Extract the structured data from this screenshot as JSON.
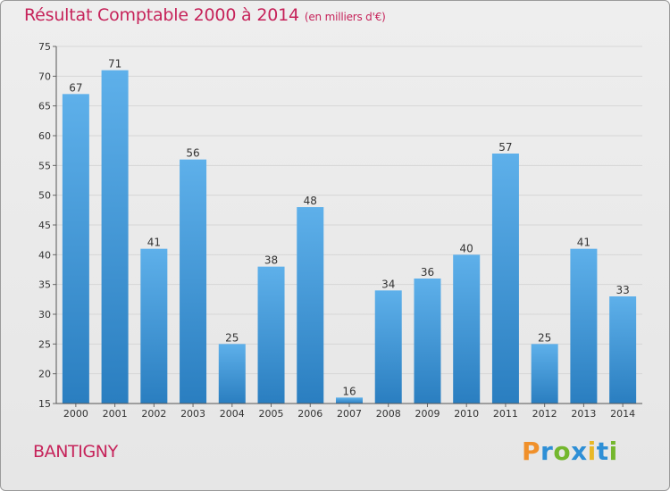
{
  "header": {
    "title": "Résultat Comptable 2000 à 2014",
    "subtitle": "(en milliers d'€)"
  },
  "footer": {
    "place": "BANTIGNY",
    "logo": "Proxiti"
  },
  "colors": {
    "title": "#c6235a",
    "bar_light": "#5eb0ea",
    "bar_dark": "#2a7ec0",
    "grid": "#d6d6d6",
    "axis_text": "#333333"
  },
  "chart_data": {
    "type": "bar",
    "title": "Résultat Comptable 2000 à 2014",
    "subtitle": "(en milliers d'€)",
    "xlabel": "",
    "ylabel": "",
    "categories": [
      "2000",
      "2001",
      "2002",
      "2003",
      "2004",
      "2005",
      "2006",
      "2007",
      "2008",
      "2009",
      "2010",
      "2011",
      "2012",
      "2013",
      "2014"
    ],
    "values": [
      67,
      71,
      41,
      56,
      25,
      38,
      48,
      16,
      34,
      36,
      40,
      57,
      25,
      41,
      33
    ],
    "ylim": [
      15,
      75
    ],
    "yticks": [
      15,
      20,
      25,
      30,
      35,
      40,
      45,
      50,
      55,
      60,
      65,
      70,
      75
    ],
    "grid": true,
    "data_labels": true
  }
}
